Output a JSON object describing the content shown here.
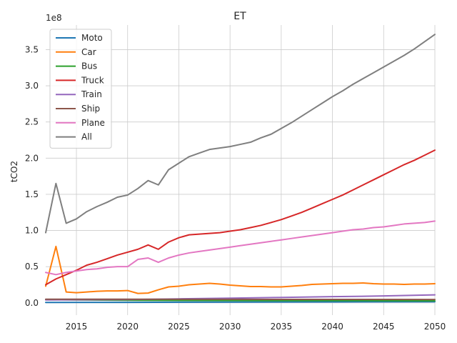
{
  "chart_data": {
    "type": "line",
    "title": "ET",
    "xlabel": "",
    "ylabel": "tCO2",
    "y_scale_label": "1e8",
    "xlim": [
      2012,
      2050
    ],
    "ylim": [
      -0.17,
      3.84
    ],
    "x_ticks": [
      2015,
      2020,
      2025,
      2030,
      2035,
      2040,
      2045,
      2050
    ],
    "x_tick_labels": [
      "2015",
      "2020",
      "2025",
      "2030",
      "2035",
      "2040",
      "2045",
      "2050"
    ],
    "y_ticks": [
      0,
      0.5,
      1.0,
      1.5,
      2.0,
      2.5,
      3.0,
      3.5
    ],
    "y_tick_labels": [
      "0.0",
      "0.5",
      "1.0",
      "1.5",
      "2.0",
      "2.5",
      "3.0",
      "3.5"
    ],
    "grid": true,
    "legend_position": "top-left",
    "series": [
      {
        "name": "Moto",
        "color": "#1f77b4",
        "x": [
          2012,
          2020,
          2030,
          2040,
          2050
        ],
        "values": [
          0.005,
          0.007,
          0.01,
          0.013,
          0.015
        ]
      },
      {
        "name": "Car",
        "color": "#ff7f0e",
        "x": [
          2012,
          2013,
          2014,
          2015,
          2016,
          2017,
          2018,
          2019,
          2020,
          2021,
          2022,
          2023,
          2024,
          2025,
          2026,
          2027,
          2028,
          2029,
          2030,
          2031,
          2032,
          2033,
          2034,
          2035,
          2036,
          2037,
          2038,
          2039,
          2040,
          2041,
          2042,
          2043,
          2044,
          2045,
          2046,
          2047,
          2048,
          2049,
          2050
        ],
        "values": [
          0.23,
          0.78,
          0.15,
          0.14,
          0.15,
          0.16,
          0.165,
          0.165,
          0.17,
          0.13,
          0.135,
          0.18,
          0.22,
          0.23,
          0.25,
          0.26,
          0.27,
          0.26,
          0.245,
          0.235,
          0.225,
          0.225,
          0.22,
          0.22,
          0.23,
          0.24,
          0.255,
          0.26,
          0.265,
          0.27,
          0.27,
          0.275,
          0.265,
          0.26,
          0.26,
          0.255,
          0.26,
          0.26,
          0.265
        ]
      },
      {
        "name": "Bus",
        "color": "#2ca02c",
        "x": [
          2012,
          2015,
          2020,
          2025,
          2030,
          2035,
          2040,
          2045,
          2050
        ],
        "values": [
          0.045,
          0.04,
          0.035,
          0.033,
          0.031,
          0.03,
          0.03,
          0.029,
          0.028
        ]
      },
      {
        "name": "Truck",
        "color": "#d62728",
        "x": [
          2012,
          2013,
          2014,
          2015,
          2016,
          2017,
          2018,
          2019,
          2020,
          2021,
          2022,
          2023,
          2024,
          2025,
          2026,
          2027,
          2028,
          2029,
          2030,
          2031,
          2032,
          2033,
          2034,
          2035,
          2036,
          2037,
          2038,
          2039,
          2040,
          2041,
          2042,
          2043,
          2044,
          2045,
          2046,
          2047,
          2048,
          2049,
          2050
        ],
        "values": [
          0.25,
          0.33,
          0.39,
          0.45,
          0.52,
          0.56,
          0.61,
          0.66,
          0.7,
          0.74,
          0.8,
          0.74,
          0.84,
          0.9,
          0.94,
          0.95,
          0.96,
          0.97,
          0.99,
          1.01,
          1.04,
          1.07,
          1.11,
          1.15,
          1.2,
          1.25,
          1.31,
          1.37,
          1.43,
          1.49,
          1.56,
          1.63,
          1.7,
          1.77,
          1.84,
          1.91,
          1.97,
          2.04,
          2.11
        ]
      },
      {
        "name": "Train",
        "color": "#9467bd",
        "x": [
          2012,
          2020,
          2025,
          2030,
          2035,
          2040,
          2045,
          2050
        ],
        "values": [
          0.04,
          0.045,
          0.055,
          0.065,
          0.075,
          0.085,
          0.095,
          0.11
        ]
      },
      {
        "name": "Ship",
        "color": "#8c564b",
        "x": [
          2012,
          2020,
          2030,
          2040,
          2050
        ],
        "values": [
          0.05,
          0.05,
          0.048,
          0.047,
          0.046
        ]
      },
      {
        "name": "Plane",
        "color": "#e377c2",
        "x": [
          2012,
          2013,
          2014,
          2015,
          2016,
          2017,
          2018,
          2019,
          2020,
          2021,
          2022,
          2023,
          2024,
          2025,
          2026,
          2027,
          2028,
          2029,
          2030,
          2031,
          2032,
          2033,
          2034,
          2035,
          2036,
          2037,
          2038,
          2039,
          2040,
          2041,
          2042,
          2043,
          2044,
          2045,
          2046,
          2047,
          2048,
          2049,
          2050
        ],
        "values": [
          0.42,
          0.39,
          0.42,
          0.44,
          0.46,
          0.47,
          0.49,
          0.5,
          0.5,
          0.6,
          0.62,
          0.56,
          0.62,
          0.66,
          0.69,
          0.71,
          0.73,
          0.75,
          0.77,
          0.79,
          0.81,
          0.83,
          0.85,
          0.87,
          0.89,
          0.91,
          0.93,
          0.95,
          0.97,
          0.99,
          1.01,
          1.02,
          1.04,
          1.05,
          1.07,
          1.09,
          1.1,
          1.11,
          1.13
        ]
      },
      {
        "name": "All",
        "color": "#7f7f7f",
        "x": [
          2012,
          2013,
          2014,
          2015,
          2016,
          2017,
          2018,
          2019,
          2020,
          2021,
          2022,
          2023,
          2024,
          2025,
          2026,
          2027,
          2028,
          2029,
          2030,
          2031,
          2032,
          2033,
          2034,
          2035,
          2036,
          2037,
          2038,
          2039,
          2040,
          2041,
          2042,
          2043,
          2044,
          2045,
          2046,
          2047,
          2048,
          2049,
          2050
        ],
        "values": [
          0.97,
          1.65,
          1.1,
          1.16,
          1.26,
          1.33,
          1.39,
          1.46,
          1.49,
          1.58,
          1.69,
          1.63,
          1.84,
          1.93,
          2.02,
          2.07,
          2.12,
          2.14,
          2.16,
          2.19,
          2.22,
          2.28,
          2.33,
          2.41,
          2.49,
          2.58,
          2.67,
          2.76,
          2.85,
          2.93,
          3.02,
          3.1,
          3.18,
          3.26,
          3.34,
          3.42,
          3.51,
          3.61,
          3.71
        ]
      }
    ]
  }
}
